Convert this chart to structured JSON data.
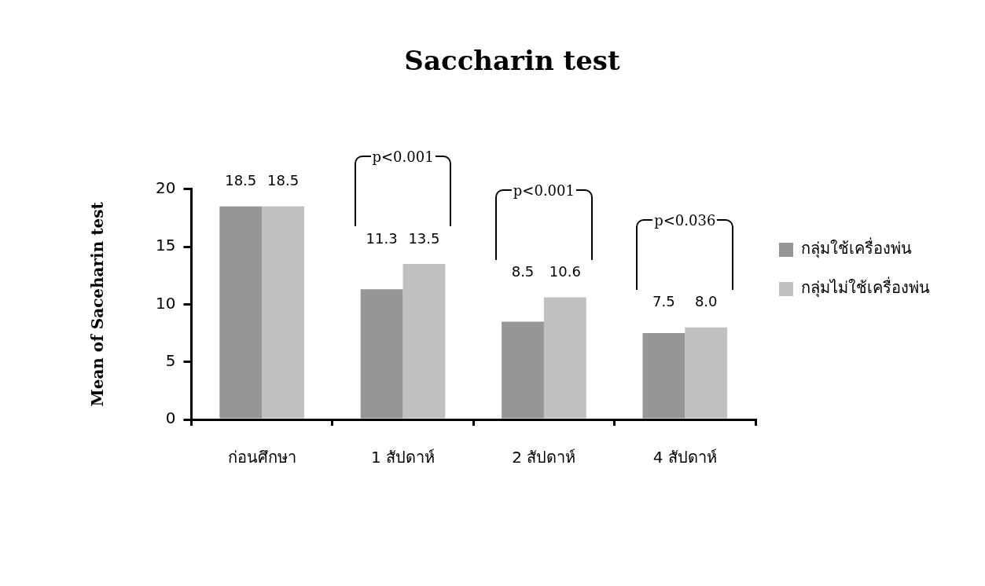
{
  "chart_data": {
    "type": "bar",
    "title": "Saccharin test",
    "ylabel": "Mean of Saceharin test",
    "categories": [
      "ก่อนศึกษา",
      "1 สัปดาห์",
      "2 สัปดาห์",
      "4 สัปดาห์"
    ],
    "series": [
      {
        "name": "กลุ่มใช้เครื่องพ่น",
        "color": "#969696",
        "values": [
          18.5,
          11.3,
          8.5,
          7.5
        ],
        "value_labels": [
          "18.5",
          "11.3",
          "8.5",
          "7.5"
        ]
      },
      {
        "name": "กลุ่มไม่ใช้เครื่องพ่น",
        "color": "#c0c0c0",
        "values": [
          18.5,
          13.5,
          10.6,
          8.0
        ],
        "value_labels": [
          "18.5",
          "13.5",
          "10.6",
          "8.0"
        ]
      }
    ],
    "ylim": [
      0,
      20
    ],
    "yticks": [
      0,
      5,
      10,
      15,
      20
    ],
    "grid": false,
    "legend": "right",
    "annotations": [
      "p<0.001",
      "p<0.001",
      "p<0.036"
    ]
  }
}
